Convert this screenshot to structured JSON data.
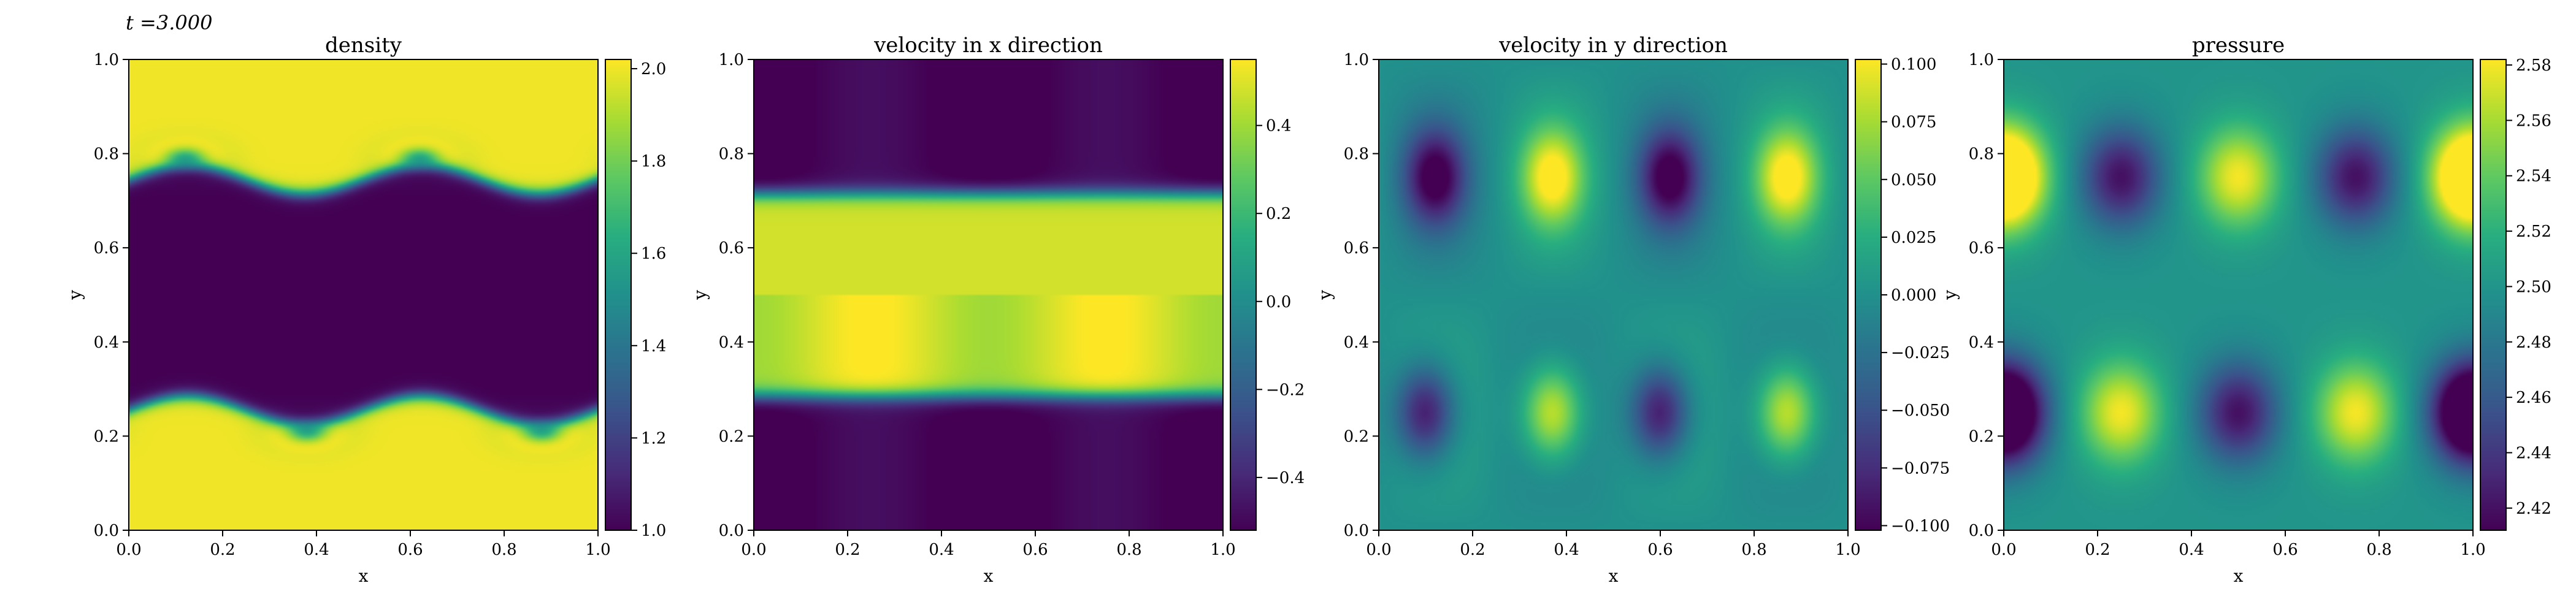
{
  "time_label": "t =3.000",
  "chart_data": [
    {
      "type": "heatmap",
      "title": "density",
      "xlabel": "x",
      "ylabel": "y",
      "xlim": [
        0.0,
        1.0
      ],
      "ylim": [
        0.0,
        1.0
      ],
      "x_ticks": [
        "0.0",
        "0.2",
        "0.4",
        "0.6",
        "0.8",
        "1.0"
      ],
      "y_ticks": [
        "0.0",
        "0.2",
        "0.4",
        "0.6",
        "0.8",
        "1.0"
      ],
      "colormap": "viridis",
      "colorbar_range": [
        1.0,
        2.02
      ],
      "colorbar_ticks": [
        "1.0",
        "1.2",
        "1.4",
        "1.6",
        "1.8",
        "2.0"
      ],
      "field": "Dense fluid (~2.0) for y<0.25 and y>0.75, light fluid (~1.0) band in the middle; interfaces rolled into Kelvin-Helmholtz vortices with two periods in x."
    },
    {
      "type": "heatmap",
      "title": "velocity in x direction",
      "xlabel": "x",
      "ylabel": "y",
      "xlim": [
        0.0,
        1.0
      ],
      "ylim": [
        0.0,
        1.0
      ],
      "x_ticks": [
        "0.0",
        "0.2",
        "0.4",
        "0.6",
        "0.8",
        "1.0"
      ],
      "y_ticks": [
        "0.0",
        "0.2",
        "0.4",
        "0.6",
        "0.8",
        "1.0"
      ],
      "colormap": "viridis",
      "colorbar_range": [
        -0.52,
        0.55
      ],
      "colorbar_ticks": [
        "−0.4",
        "−0.2",
        "0.0",
        "0.2",
        "0.4"
      ],
      "field": "Positive (~0.5) in central band 0.28<y<0.72, negative (~-0.5) outside, smooth transitions with weak two-period modulation."
    },
    {
      "type": "heatmap",
      "title": "velocity in y direction",
      "xlabel": "x",
      "ylabel": "y",
      "xlim": [
        0.0,
        1.0
      ],
      "ylim": [
        0.0,
        1.0
      ],
      "x_ticks": [
        "0.0",
        "0.2",
        "0.4",
        "0.6",
        "0.8",
        "1.0"
      ],
      "y_ticks": [
        "0.0",
        "0.2",
        "0.4",
        "0.6",
        "0.8",
        "1.0"
      ],
      "colormap": "viridis",
      "colorbar_range": [
        -0.102,
        0.102
      ],
      "colorbar_ticks": [
        "0.100",
        "0.075",
        "0.050",
        "0.025",
        "0.000",
        "−0.025",
        "−0.050",
        "−0.075",
        "−0.100"
      ],
      "field": "Alternating lobes along y~0.25 and y~0.75: minima near x~0.1, 0.6; maxima near x~0.35, 0.85."
    },
    {
      "type": "heatmap",
      "title": "pressure",
      "xlabel": "x",
      "ylabel": "y",
      "xlim": [
        0.0,
        1.0
      ],
      "ylim": [
        0.0,
        1.0
      ],
      "x_ticks": [
        "0.0",
        "0.2",
        "0.4",
        "0.6",
        "0.8",
        "1.0"
      ],
      "y_ticks": [
        "0.0",
        "0.2",
        "0.4",
        "0.6",
        "0.8",
        "1.0"
      ],
      "colormap": "viridis",
      "colorbar_range": [
        2.412,
        2.582
      ],
      "colorbar_ticks": [
        "2.58",
        "2.56",
        "2.54",
        "2.52",
        "2.50",
        "2.48",
        "2.46",
        "2.44",
        "2.42"
      ],
      "field": "Background ~2.50; along y~0.75 maxima at x~0, 0.5, 1.0 and minima at x~0.25, 0.75; along y~0.25 pattern shifted (maxima at x~0.25, 0.75)."
    }
  ]
}
